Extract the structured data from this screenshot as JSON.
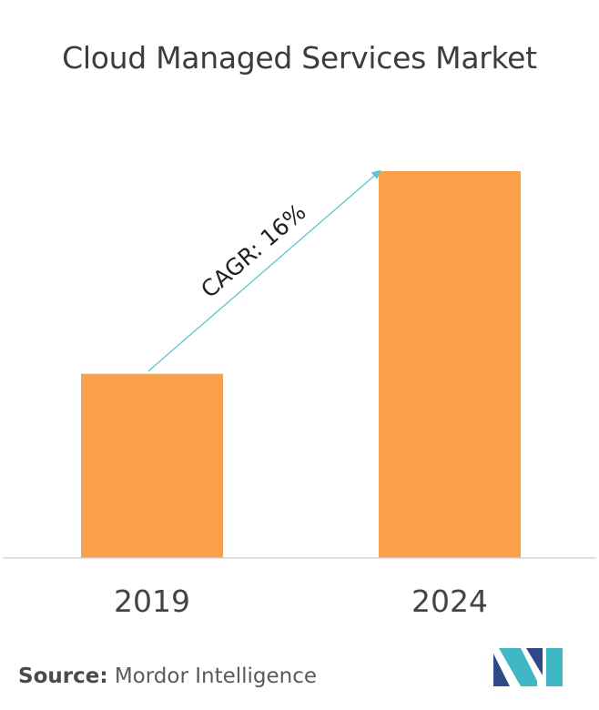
{
  "chart_data": {
    "type": "bar",
    "title": "Cloud Managed Services Market",
    "categories": [
      "2019",
      "2024"
    ],
    "values": [
      0.476,
      1.0
    ],
    "annotation": "CAGR: 16%",
    "ylim": [
      0,
      1.0
    ],
    "grid": false,
    "bar_color": "#fba04a",
    "arrow_color": "#5ec4d1"
  },
  "source": {
    "label": "Source:",
    "text": " Mordor Intelligence"
  },
  "logo": {
    "icon": "mordor-intelligence-logo-icon",
    "colors": [
      "#2f4a86",
      "#3fb7c4"
    ]
  }
}
